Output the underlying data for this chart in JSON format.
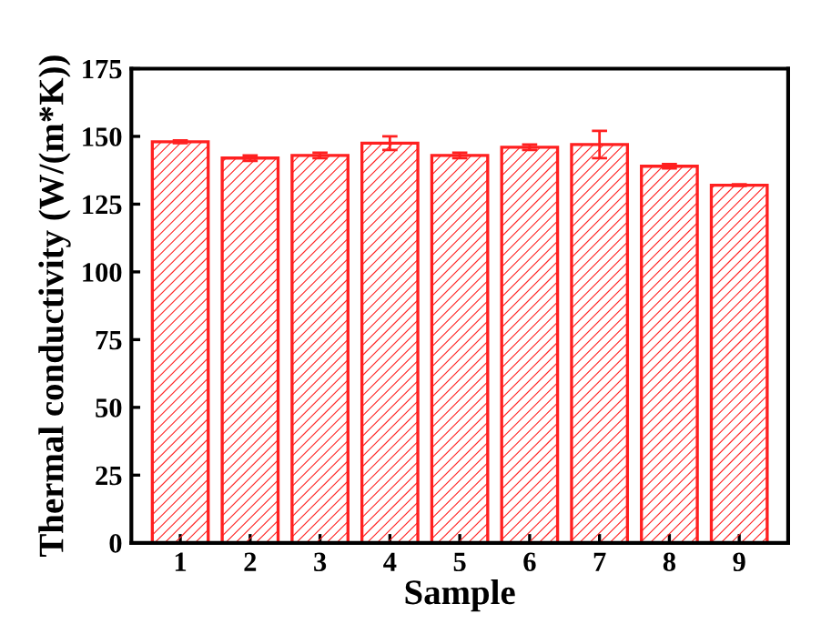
{
  "chart_data": {
    "type": "bar",
    "xlabel": "Sample",
    "ylabel": "Thermal conductivity (W/(m*K))",
    "categories": [
      "1",
      "2",
      "3",
      "4",
      "5",
      "6",
      "7",
      "8",
      "9"
    ],
    "values": [
      148,
      142,
      143,
      147.5,
      143,
      146,
      147,
      139,
      132
    ],
    "errors": [
      0.5,
      1,
      1,
      2.5,
      1,
      1,
      5,
      0.8,
      0.3
    ],
    "color": "#ff2020",
    "ylim": [
      0,
      175
    ],
    "yticks": [
      0,
      25,
      50,
      75,
      100,
      125,
      150,
      175
    ],
    "grid": false
  }
}
